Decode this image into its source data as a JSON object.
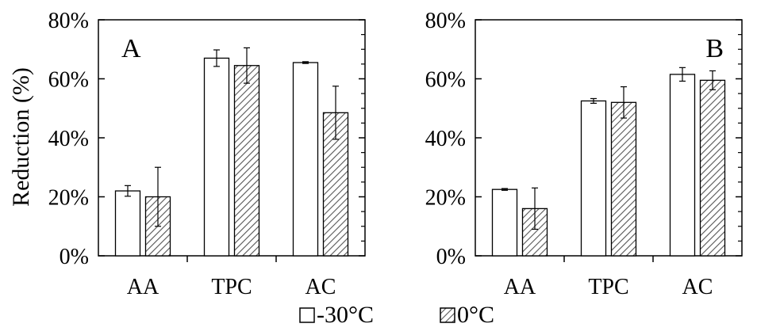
{
  "legend": {
    "entries": [
      {
        "label": "-30°C",
        "pattern": "none"
      },
      {
        "label": "0°C",
        "pattern": "hatch"
      }
    ]
  },
  "colors": {
    "axis": "#000000",
    "bar_fill": "#ffffff",
    "bar_stroke": "#000000",
    "hatch": "#555555"
  },
  "chart_data": [
    {
      "type": "bar",
      "panel_label": "A",
      "title": "",
      "xlabel": "",
      "ylabel": "Reduction (%)",
      "categories": [
        "AA",
        "TPC",
        "AC"
      ],
      "ylim": [
        0,
        80
      ],
      "yticks": [
        "0%",
        "20%",
        "40%",
        "60%",
        "80%"
      ],
      "series": [
        {
          "name": "-30°C",
          "values": [
            22,
            67,
            65.5
          ],
          "errors": [
            1.8,
            2.8,
            0.3
          ]
        },
        {
          "name": "0°C",
          "values": [
            20,
            64.5,
            48.5
          ],
          "errors": [
            10,
            6,
            9
          ]
        }
      ],
      "grid": false,
      "legend_position": "bottom"
    },
    {
      "type": "bar",
      "panel_label": "B",
      "title": "",
      "xlabel": "",
      "ylabel": "",
      "categories": [
        "AA",
        "TPC",
        "AC"
      ],
      "ylim": [
        0,
        80
      ],
      "yticks": [
        "0%",
        "20%",
        "40%",
        "60%",
        "80%"
      ],
      "series": [
        {
          "name": "-30°C",
          "values": [
            22.5,
            52.5,
            61.5
          ],
          "errors": [
            0.3,
            0.8,
            2.3
          ]
        },
        {
          "name": "0°C",
          "values": [
            16,
            52,
            59.5
          ],
          "errors": [
            7,
            5.3,
            3.2
          ]
        }
      ],
      "grid": false,
      "legend_position": "bottom"
    }
  ]
}
